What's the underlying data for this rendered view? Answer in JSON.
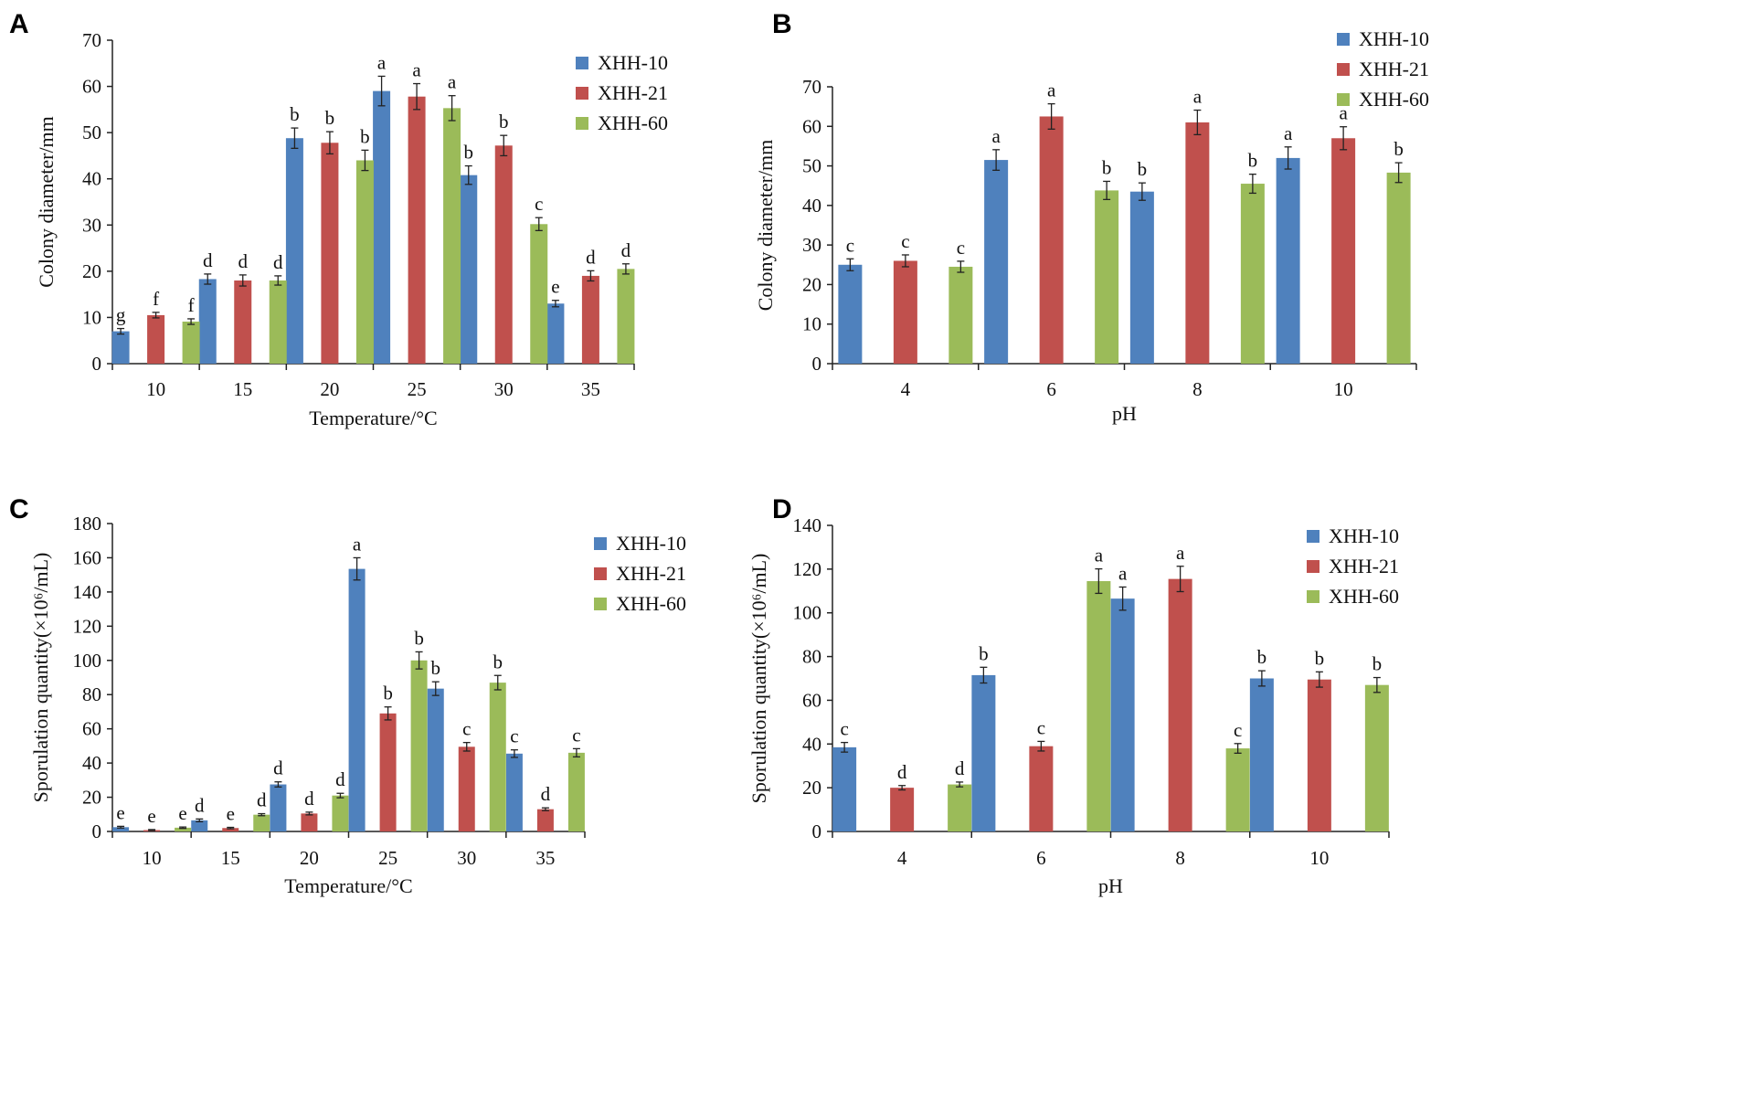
{
  "colors": {
    "XHH-10": "#4F81BD",
    "XHH-21": "#C0504D",
    "XHH-60": "#9BBB59"
  },
  "chart_data": [
    {
      "panel": "A",
      "type": "bar",
      "xlabel": "Temperature/°C",
      "ylabel": "Colony diameter/mm",
      "categories": [
        "10",
        "15",
        "20",
        "25",
        "30",
        "35"
      ],
      "ylim": [
        0,
        70
      ],
      "yticks": [
        0,
        10,
        20,
        30,
        40,
        50,
        60,
        70
      ],
      "legend_position": "top-right",
      "series": [
        {
          "name": "XHH-10",
          "values": [
            7,
            18.3,
            48.8,
            59,
            40.8,
            13
          ],
          "errors": [
            0.6,
            1.1,
            2.2,
            3.2,
            2.0,
            0.7
          ],
          "letters": [
            "g",
            "d",
            "b",
            "a",
            "b",
            "e"
          ]
        },
        {
          "name": "XHH-21",
          "values": [
            10.5,
            18,
            47.8,
            57.8,
            47.2,
            19
          ],
          "errors": [
            0.6,
            1.2,
            2.4,
            2.8,
            2.2,
            1.1
          ],
          "letters": [
            "f",
            "d",
            "b",
            "a",
            "b",
            "d"
          ]
        },
        {
          "name": "XHH-60",
          "values": [
            9.1,
            18,
            44,
            55.3,
            30.2,
            20.5
          ],
          "errors": [
            0.6,
            1.0,
            2.2,
            2.7,
            1.4,
            1.1
          ],
          "letters": [
            "f",
            "d",
            "b",
            "a",
            "c",
            "d"
          ]
        }
      ]
    },
    {
      "panel": "B",
      "type": "bar",
      "xlabel": "pH",
      "ylabel": "Colony diameter/mm",
      "categories": [
        "4",
        "6",
        "8",
        "10"
      ],
      "ylim": [
        0,
        70
      ],
      "yticks": [
        0,
        10,
        20,
        30,
        40,
        50,
        60,
        70
      ],
      "legend_position": "top-right",
      "series": [
        {
          "name": "XHH-10",
          "values": [
            25,
            51.5,
            43.5,
            52
          ],
          "errors": [
            1.5,
            2.6,
            2.2,
            2.8
          ],
          "letters": [
            "c",
            "a",
            "b",
            "a"
          ]
        },
        {
          "name": "XHH-21",
          "values": [
            26,
            62.5,
            61,
            57
          ],
          "errors": [
            1.5,
            3.2,
            3.1,
            2.9
          ],
          "letters": [
            "c",
            "a",
            "a",
            "a"
          ]
        },
        {
          "name": "XHH-60",
          "values": [
            24.5,
            43.8,
            45.5,
            48.3
          ],
          "errors": [
            1.4,
            2.3,
            2.4,
            2.5
          ],
          "letters": [
            "c",
            "b",
            "b",
            "b"
          ]
        }
      ]
    },
    {
      "panel": "C",
      "type": "bar",
      "xlabel": "Temperature/°C",
      "ylabel": "Sporulation quantity(×10⁶/mL)",
      "categories": [
        "10",
        "15",
        "20",
        "25",
        "30",
        "35"
      ],
      "ylim": [
        0,
        180
      ],
      "yticks": [
        0,
        20,
        40,
        60,
        80,
        100,
        120,
        140,
        160,
        180
      ],
      "legend_position": "top-right",
      "series": [
        {
          "name": "XHH-10",
          "values": [
            2.5,
            6.5,
            27.5,
            153.5,
            83.5,
            45.5
          ],
          "errors": [
            0.5,
            0.8,
            1.5,
            6.5,
            4.0,
            2.2
          ],
          "letters": [
            "e",
            "d",
            "d",
            "a",
            "b",
            "c"
          ]
        },
        {
          "name": "XHH-21",
          "values": [
            0.8,
            2,
            10.5,
            69,
            49.5,
            13
          ],
          "errors": [
            0.3,
            0.4,
            0.8,
            3.8,
            2.5,
            0.8
          ],
          "letters": [
            "e",
            "e",
            "d",
            "b",
            "c",
            "d"
          ]
        },
        {
          "name": "XHH-60",
          "values": [
            2.2,
            9.8,
            21,
            100,
            87,
            46
          ],
          "errors": [
            0.4,
            0.6,
            1.3,
            5.0,
            4.2,
            2.4
          ],
          "letters": [
            "e",
            "d",
            "d",
            "b",
            "b",
            "c"
          ]
        }
      ]
    },
    {
      "panel": "D",
      "type": "bar",
      "xlabel": "pH",
      "ylabel": "Sporulation quantity(×10⁶/mL)",
      "categories": [
        "4",
        "6",
        "8",
        "10"
      ],
      "ylim": [
        0,
        140
      ],
      "yticks": [
        0,
        20,
        40,
        60,
        80,
        100,
        120,
        140
      ],
      "legend_position": "top-right",
      "series": [
        {
          "name": "XHH-10",
          "values": [
            38.5,
            71.5,
            106.5,
            70
          ],
          "errors": [
            2.2,
            3.6,
            5.3,
            3.5
          ],
          "letters": [
            "c",
            "b",
            "a",
            "b"
          ]
        },
        {
          "name": "XHH-21",
          "values": [
            20,
            39,
            115.5,
            69.5
          ],
          "errors": [
            1.0,
            2.2,
            5.8,
            3.5
          ],
          "letters": [
            "d",
            "c",
            "a",
            "b"
          ]
        },
        {
          "name": "XHH-60",
          "values": [
            21.5,
            114.5,
            38,
            67
          ],
          "errors": [
            1.1,
            5.6,
            2.2,
            3.4
          ],
          "letters": [
            "d",
            "a",
            "c",
            "b"
          ]
        }
      ]
    }
  ]
}
